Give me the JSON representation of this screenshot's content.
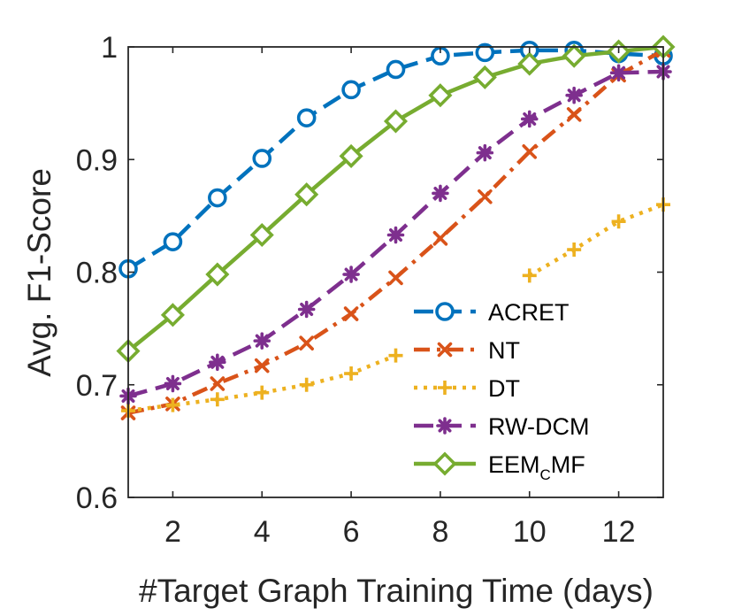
{
  "chart_data": {
    "type": "line",
    "xlabel": "#Target Graph Training Time (days)",
    "ylabel": "Avg. F1-Score",
    "xlim": [
      1,
      13
    ],
    "ylim": [
      0.6,
      1.0
    ],
    "xticks": [
      "2",
      "4",
      "6",
      "8",
      "10",
      "12"
    ],
    "yticks": [
      "0.6",
      "0.7",
      "0.8",
      "0.9",
      "1"
    ],
    "grid": false,
    "legend_position": "bottom-right",
    "x": [
      1,
      2,
      3,
      4,
      5,
      6,
      7,
      8,
      9,
      10,
      11,
      12,
      13
    ],
    "series": [
      {
        "name": "ACRET",
        "color": "#0072BD",
        "line_style": "dash",
        "marker": "circle",
        "values": [
          0.803,
          0.827,
          0.866,
          0.901,
          0.937,
          0.962,
          0.98,
          0.992,
          0.995,
          0.997,
          0.997,
          0.994,
          0.992
        ]
      },
      {
        "name": "NT",
        "color": "#D95319",
        "line_style": "dashdot",
        "marker": "x",
        "values": [
          0.675,
          0.683,
          0.701,
          0.717,
          0.737,
          0.763,
          0.795,
          0.83,
          0.867,
          0.907,
          0.94,
          0.975,
          0.997
        ]
      },
      {
        "name": "DT",
        "color": "#EDB120",
        "line_style": "dot",
        "marker": "plus",
        "values": [
          0.677,
          0.682,
          0.687,
          0.693,
          0.7,
          0.71,
          0.726,
          null,
          null,
          0.797,
          0.82,
          0.845,
          0.86
        ]
      },
      {
        "name": "RW-DCM",
        "color": "#7E2F8E",
        "line_style": "dash",
        "marker": "asterisk",
        "values": [
          0.69,
          0.701,
          0.72,
          0.739,
          0.767,
          0.798,
          0.833,
          0.87,
          0.906,
          0.936,
          0.957,
          0.977,
          0.978
        ]
      },
      {
        "name": "EEMCMF",
        "name_base": "EEM",
        "name_sub": "C",
        "name_rest": "MF",
        "color": "#77AC30",
        "line_style": "solid",
        "marker": "diamond",
        "values": [
          0.73,
          0.762,
          0.798,
          0.833,
          0.869,
          0.903,
          0.934,
          0.957,
          0.973,
          0.985,
          0.992,
          0.996,
          1.0
        ]
      }
    ]
  }
}
